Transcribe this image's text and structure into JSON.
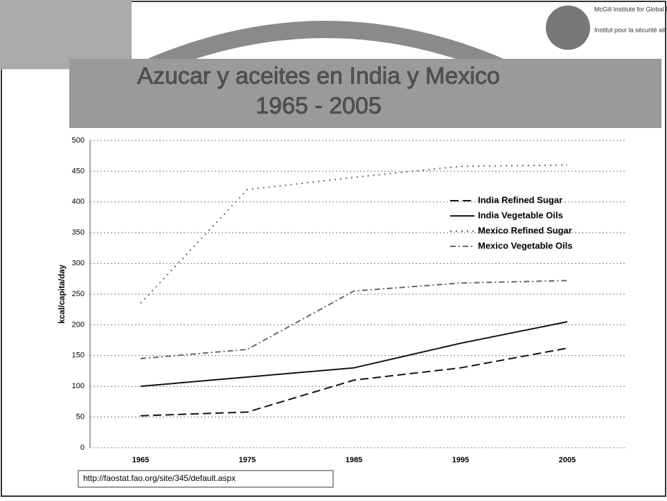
{
  "header": {
    "institute_en": "McGill Institute for Global Food Security",
    "institute_fr": "Institut pour la sécurité alimentaire mondiale de McGill"
  },
  "source": "http://faostat.fao.org/site/345/default.aspx",
  "chart_data": {
    "type": "line",
    "title": "Azucar y aceites en India y Mexico",
    "subtitle": "1965 - 2005",
    "y_label": "kcal/capita/day",
    "categories": [
      "1965",
      "1975",
      "1985",
      "1995",
      "2005"
    ],
    "series": [
      {
        "name": "India Refined Sugar",
        "color": "#111111",
        "line_style": "dashed",
        "values": [
          52,
          58,
          110,
          130,
          162
        ]
      },
      {
        "name": "India Vegetable Oils",
        "color": "#111111",
        "line_style": "solid",
        "values": [
          100,
          115,
          130,
          170,
          205
        ]
      },
      {
        "name": "Mexico Refined Sugar",
        "color": "#666666",
        "line_style": "dotted",
        "values": [
          235,
          420,
          440,
          458,
          460
        ]
      },
      {
        "name": "Mexico Vegetable Oils",
        "color": "#666666",
        "line_style": "dashdot",
        "values": [
          145,
          160,
          255,
          268,
          272
        ]
      }
    ],
    "ylim": [
      0,
      500
    ],
    "yticks": [
      0,
      50,
      100,
      150,
      200,
      250,
      300,
      350,
      400,
      450,
      500
    ],
    "grid": true,
    "legend": "right"
  }
}
